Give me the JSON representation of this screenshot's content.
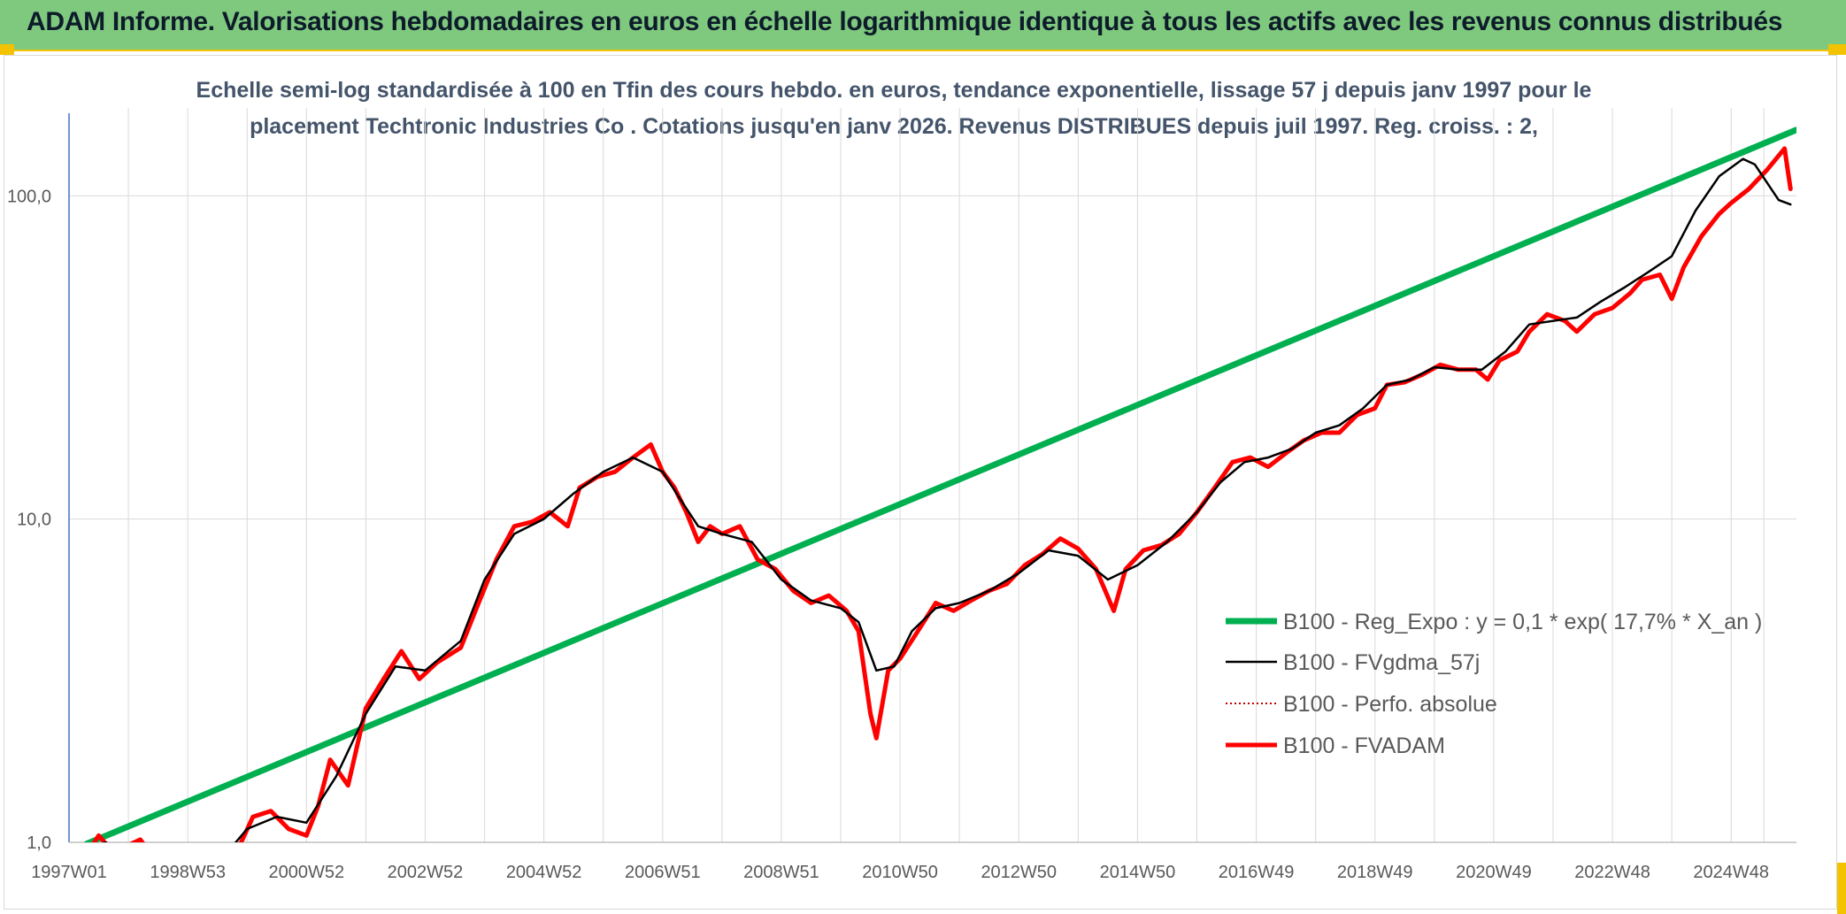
{
  "banner": {
    "title": "ADAM Informe. Valorisations hebdomadaires en euros en échelle logarithmique identique à tous les actifs avec les revenus connus distribués"
  },
  "colors": {
    "banner_bg": "#7fc97f",
    "banner_accent": "#f3c200",
    "reg_expo": "#00b050",
    "fvgdma": "#000000",
    "perfo": "#c00000",
    "fvadam": "#ff0000",
    "subtitle": "#44546a"
  },
  "chart_data": {
    "type": "line",
    "title_line1": "Echelle semi-log standardisée à 100 en Tfin des cours hebdo. en euros, tendance exponentielle, lissage 57 j depuis janv 1997 pour le",
    "title_line2": "placement Techtronic Industries Co . Cotations jusqu'en janv 2026. Revenus DISTRIBUES depuis juil 1997. Reg. croiss. : 2,",
    "y_scale": "log",
    "ylim": [
      1,
      180
    ],
    "y_ticks": [
      {
        "value": 1,
        "label": "1,0"
      },
      {
        "value": 10,
        "label": "10,0"
      },
      {
        "value": 100,
        "label": "100,0"
      }
    ],
    "xlim": [
      1997.0,
      2026.1
    ],
    "x_ticks": [
      {
        "value": 1997.0,
        "label": "1997W01"
      },
      {
        "value": 1999.0,
        "label": "1998W53"
      },
      {
        "value": 2001.0,
        "label": "2000W52"
      },
      {
        "value": 2003.0,
        "label": "2002W52"
      },
      {
        "value": 2005.0,
        "label": "2004W52"
      },
      {
        "value": 2007.0,
        "label": "2006W51"
      },
      {
        "value": 2009.0,
        "label": "2008W51"
      },
      {
        "value": 2011.0,
        "label": "2010W50"
      },
      {
        "value": 2013.0,
        "label": "2012W50"
      },
      {
        "value": 2015.0,
        "label": "2014W50"
      },
      {
        "value": 2017.0,
        "label": "2016W49"
      },
      {
        "value": 2019.0,
        "label": "2018W49"
      },
      {
        "value": 2021.0,
        "label": "2020W49"
      },
      {
        "value": 2023.0,
        "label": "2022W48"
      },
      {
        "value": 2025.0,
        "label": "2024W48"
      }
    ],
    "grid": true,
    "legend_position": "bottom-right",
    "series": [
      {
        "name": "B100 - Reg_Expo : y = 0,1 * exp( 17,7% *  X_an )",
        "style": "thick",
        "points": [
          [
            1997.3,
            0.99
          ],
          [
            2026.1,
            160
          ]
        ]
      },
      {
        "name": "B100 - FVgdma_57j",
        "style": "thin",
        "points": [
          [
            1997.3,
            0.93
          ],
          [
            1997.6,
            1.0
          ],
          [
            1998.0,
            0.95
          ],
          [
            1998.5,
            0.85
          ],
          [
            1999.0,
            0.8
          ],
          [
            1999.6,
            0.9
          ],
          [
            2000.0,
            1.1
          ],
          [
            2000.5,
            1.2
          ],
          [
            2001.0,
            1.15
          ],
          [
            2001.5,
            1.6
          ],
          [
            2002.0,
            2.5
          ],
          [
            2002.5,
            3.5
          ],
          [
            2003.0,
            3.4
          ],
          [
            2003.6,
            4.2
          ],
          [
            2004.0,
            6.5
          ],
          [
            2004.5,
            9.0
          ],
          [
            2005.0,
            10.0
          ],
          [
            2005.5,
            12.0
          ],
          [
            2006.0,
            14.0
          ],
          [
            2006.5,
            15.5
          ],
          [
            2007.0,
            14.0
          ],
          [
            2007.3,
            11.5
          ],
          [
            2007.6,
            9.5
          ],
          [
            2008.0,
            9.0
          ],
          [
            2008.5,
            8.5
          ],
          [
            2009.0,
            6.5
          ],
          [
            2009.5,
            5.6
          ],
          [
            2010.0,
            5.3
          ],
          [
            2010.3,
            4.8
          ],
          [
            2010.6,
            3.4
          ],
          [
            2010.9,
            3.5
          ],
          [
            2011.2,
            4.5
          ],
          [
            2011.6,
            5.3
          ],
          [
            2012.0,
            5.5
          ],
          [
            2012.5,
            6.0
          ],
          [
            2013.0,
            6.8
          ],
          [
            2013.5,
            8.0
          ],
          [
            2014.0,
            7.7
          ],
          [
            2014.5,
            6.5
          ],
          [
            2015.0,
            7.2
          ],
          [
            2015.5,
            8.5
          ],
          [
            2016.0,
            10.5
          ],
          [
            2016.4,
            13.0
          ],
          [
            2016.8,
            15.0
          ],
          [
            2017.2,
            15.5
          ],
          [
            2017.6,
            16.5
          ],
          [
            2018.0,
            18.5
          ],
          [
            2018.4,
            19.5
          ],
          [
            2018.8,
            22.0
          ],
          [
            2019.2,
            26.0
          ],
          [
            2019.6,
            27.0
          ],
          [
            2020.0,
            29.5
          ],
          [
            2020.4,
            29.0
          ],
          [
            2020.8,
            29.0
          ],
          [
            2021.2,
            33.0
          ],
          [
            2021.6,
            40.0
          ],
          [
            2022.0,
            41.0
          ],
          [
            2022.4,
            42.0
          ],
          [
            2022.8,
            47.0
          ],
          [
            2023.2,
            52.0
          ],
          [
            2023.6,
            58.0
          ],
          [
            2024.0,
            65.0
          ],
          [
            2024.4,
            90.0
          ],
          [
            2024.8,
            115.0
          ],
          [
            2025.2,
            130.0
          ],
          [
            2025.4,
            125.0
          ],
          [
            2025.6,
            110.0
          ],
          [
            2025.8,
            97.0
          ],
          [
            2026.0,
            94.0
          ]
        ]
      },
      {
        "name": "B100 - Perfo. absolue",
        "style": "dotted",
        "points": []
      },
      {
        "name": "B100 - FVADAM",
        "style": "thick",
        "points": [
          [
            1997.3,
            0.92
          ],
          [
            1997.5,
            1.05
          ],
          [
            1997.7,
            0.95
          ],
          [
            1998.0,
            0.98
          ],
          [
            1998.2,
            1.02
          ],
          [
            1998.5,
            0.86
          ],
          [
            1999.0,
            0.8
          ],
          [
            1999.6,
            0.85
          ],
          [
            1999.9,
            1.0
          ],
          [
            2000.1,
            1.2
          ],
          [
            2000.4,
            1.25
          ],
          [
            2000.7,
            1.1
          ],
          [
            2001.0,
            1.05
          ],
          [
            2001.2,
            1.3
          ],
          [
            2001.4,
            1.8
          ],
          [
            2001.7,
            1.5
          ],
          [
            2002.0,
            2.6
          ],
          [
            2002.3,
            3.2
          ],
          [
            2002.6,
            3.9
          ],
          [
            2002.9,
            3.2
          ],
          [
            2003.2,
            3.6
          ],
          [
            2003.6,
            4.0
          ],
          [
            2003.9,
            5.5
          ],
          [
            2004.2,
            7.5
          ],
          [
            2004.5,
            9.5
          ],
          [
            2004.8,
            9.8
          ],
          [
            2005.1,
            10.5
          ],
          [
            2005.4,
            9.5
          ],
          [
            2005.6,
            12.5
          ],
          [
            2005.9,
            13.5
          ],
          [
            2006.2,
            14.0
          ],
          [
            2006.5,
            15.5
          ],
          [
            2006.8,
            17.0
          ],
          [
            2007.0,
            14.0
          ],
          [
            2007.2,
            12.5
          ],
          [
            2007.4,
            10.5
          ],
          [
            2007.6,
            8.5
          ],
          [
            2007.8,
            9.5
          ],
          [
            2008.0,
            9.0
          ],
          [
            2008.3,
            9.5
          ],
          [
            2008.6,
            7.5
          ],
          [
            2008.9,
            7.0
          ],
          [
            2009.2,
            6.0
          ],
          [
            2009.5,
            5.5
          ],
          [
            2009.8,
            5.8
          ],
          [
            2010.1,
            5.2
          ],
          [
            2010.3,
            4.5
          ],
          [
            2010.5,
            2.5
          ],
          [
            2010.6,
            2.1
          ],
          [
            2010.8,
            3.4
          ],
          [
            2011.0,
            3.7
          ],
          [
            2011.3,
            4.5
          ],
          [
            2011.6,
            5.5
          ],
          [
            2011.9,
            5.2
          ],
          [
            2012.2,
            5.6
          ],
          [
            2012.5,
            6.0
          ],
          [
            2012.8,
            6.3
          ],
          [
            2013.1,
            7.2
          ],
          [
            2013.4,
            7.8
          ],
          [
            2013.7,
            8.7
          ],
          [
            2014.0,
            8.1
          ],
          [
            2014.3,
            7.0
          ],
          [
            2014.6,
            5.2
          ],
          [
            2014.8,
            7.0
          ],
          [
            2015.1,
            8.0
          ],
          [
            2015.4,
            8.3
          ],
          [
            2015.7,
            9.0
          ],
          [
            2016.0,
            10.5
          ],
          [
            2016.3,
            12.5
          ],
          [
            2016.6,
            15.0
          ],
          [
            2016.9,
            15.5
          ],
          [
            2017.2,
            14.5
          ],
          [
            2017.5,
            16.0
          ],
          [
            2017.8,
            17.5
          ],
          [
            2018.1,
            18.5
          ],
          [
            2018.4,
            18.5
          ],
          [
            2018.7,
            21.0
          ],
          [
            2019.0,
            22.0
          ],
          [
            2019.2,
            26.0
          ],
          [
            2019.5,
            26.5
          ],
          [
            2019.8,
            28.0
          ],
          [
            2020.1,
            30.0
          ],
          [
            2020.4,
            29.0
          ],
          [
            2020.7,
            29.0
          ],
          [
            2020.9,
            27.0
          ],
          [
            2021.1,
            31.0
          ],
          [
            2021.4,
            33.0
          ],
          [
            2021.6,
            38.0
          ],
          [
            2021.9,
            43.0
          ],
          [
            2022.2,
            41.0
          ],
          [
            2022.4,
            38.0
          ],
          [
            2022.7,
            43.0
          ],
          [
            2023.0,
            45.0
          ],
          [
            2023.3,
            50.0
          ],
          [
            2023.5,
            55.0
          ],
          [
            2023.8,
            57.0
          ],
          [
            2024.0,
            48.0
          ],
          [
            2024.2,
            60.0
          ],
          [
            2024.5,
            75.0
          ],
          [
            2024.8,
            88.0
          ],
          [
            2025.0,
            95.0
          ],
          [
            2025.3,
            105.0
          ],
          [
            2025.6,
            120.0
          ],
          [
            2025.9,
            140.0
          ],
          [
            2026.0,
            105.0
          ]
        ]
      }
    ]
  }
}
